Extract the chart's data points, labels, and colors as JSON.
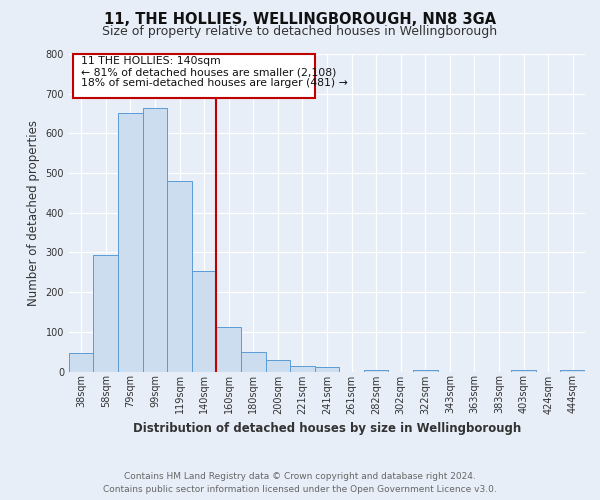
{
  "title": "11, THE HOLLIES, WELLINGBOROUGH, NN8 3GA",
  "subtitle": "Size of property relative to detached houses in Wellingborough",
  "xlabel": "Distribution of detached houses by size in Wellingborough",
  "ylabel": "Number of detached properties",
  "categories": [
    "38sqm",
    "58sqm",
    "79sqm",
    "99sqm",
    "119sqm",
    "140sqm",
    "160sqm",
    "180sqm",
    "200sqm",
    "221sqm",
    "241sqm",
    "261sqm",
    "282sqm",
    "302sqm",
    "322sqm",
    "343sqm",
    "363sqm",
    "383sqm",
    "403sqm",
    "424sqm",
    "444sqm"
  ],
  "values": [
    47,
    293,
    651,
    665,
    480,
    253,
    113,
    48,
    28,
    15,
    12,
    0,
    3,
    0,
    5,
    0,
    0,
    0,
    4,
    0,
    5
  ],
  "bar_color": "#ccddf0",
  "bar_edge_color": "#5b9bd5",
  "highlight_bar_index": 5,
  "highlight_edge_color": "#c00000",
  "vline_color": "#c00000",
  "annotation_title": "11 THE HOLLIES: 140sqm",
  "annotation_line1": "← 81% of detached houses are smaller (2,108)",
  "annotation_line2": "18% of semi-detached houses are larger (481) →",
  "annotation_box_color": "#ffffff",
  "annotation_box_edge_color": "#c00000",
  "ylim": [
    0,
    800
  ],
  "yticks": [
    0,
    100,
    200,
    300,
    400,
    500,
    600,
    700,
    800
  ],
  "footer_line1": "Contains HM Land Registry data © Crown copyright and database right 2024.",
  "footer_line2": "Contains public sector information licensed under the Open Government Licence v3.0.",
  "bg_color": "#e8eef8",
  "plot_bg_color": "#e8eef8",
  "grid_color": "#ffffff",
  "title_fontsize": 10.5,
  "subtitle_fontsize": 9,
  "axis_label_fontsize": 8.5,
  "tick_fontsize": 7,
  "footer_fontsize": 6.5,
  "annotation_fontsize": 7.8
}
